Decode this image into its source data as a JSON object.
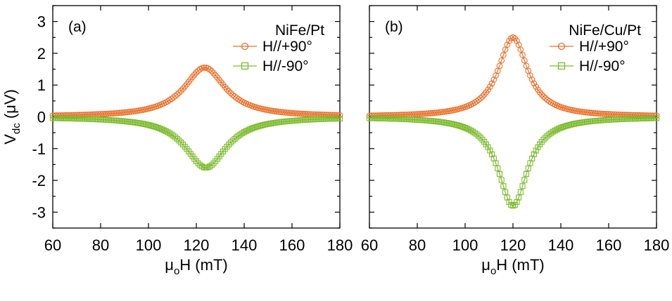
{
  "chart_data": [
    {
      "type": "scatter",
      "panel_label": "(a)",
      "legend_title": "NiFe/Pt",
      "xlabel": "μ0H (mT)",
      "xlabel_main": "μ",
      "xlabel_sub": "o",
      "xlabel_rest": "H (mT)",
      "ylabel": "Vdc (μV)",
      "ylabel_main": "V",
      "ylabel_sub": "dc",
      "ylabel_rest": " (μV)",
      "xlim": [
        60,
        180
      ],
      "ylim": [
        -3.5,
        3.5
      ],
      "xticks": [
        60,
        80,
        100,
        120,
        140,
        160,
        180
      ],
      "yticks": [
        3,
        2,
        1,
        0,
        -1,
        -2,
        -3
      ],
      "series": [
        {
          "name": "H//+90°",
          "marker": "circle",
          "color": "#e8702a",
          "model": {
            "center": 123.5,
            "width": 10.5,
            "amplitude": 1.55,
            "offset": 0.0
          },
          "x": [
            60,
            70,
            80,
            90,
            100,
            110,
            115,
            120,
            123.5,
            127,
            130,
            135,
            140,
            150,
            160,
            170,
            180
          ],
          "y": [
            0.1,
            0.15,
            0.2,
            0.3,
            0.45,
            0.8,
            1.1,
            1.45,
            1.55,
            1.4,
            1.2,
            0.8,
            0.45,
            0.2,
            0.1,
            0.05,
            0.03
          ]
        },
        {
          "name": "H//-90°",
          "marker": "square",
          "color": "#7cbb2e",
          "model": {
            "center": 124.0,
            "width": 10.5,
            "amplitude": -1.6,
            "offset": 0.0
          },
          "x": [
            60,
            70,
            80,
            90,
            100,
            110,
            115,
            120,
            124,
            127,
            130,
            135,
            140,
            150,
            160,
            170,
            180
          ],
          "y": [
            -0.1,
            -0.15,
            -0.2,
            -0.3,
            -0.45,
            -0.8,
            -1.1,
            -1.5,
            -1.6,
            -1.5,
            -1.25,
            -0.85,
            -0.5,
            -0.25,
            -0.12,
            -0.07,
            -0.05
          ]
        }
      ]
    },
    {
      "type": "scatter",
      "panel_label": "(b)",
      "legend_title": "NiFe/Cu/Pt",
      "xlabel": "μ0H (mT)",
      "xlabel_main": "μ",
      "xlabel_sub": "o",
      "xlabel_rest": "H (mT)",
      "xlim": [
        60,
        180
      ],
      "ylim": [
        -3.5,
        3.5
      ],
      "xticks": [
        60,
        80,
        100,
        120,
        140,
        160,
        180
      ],
      "series": [
        {
          "name": "H//+90°",
          "marker": "circle",
          "color": "#e8702a",
          "model": {
            "center": 120.0,
            "width": 7.5,
            "amplitude": 2.5,
            "offset": 0.0
          },
          "x": [
            60,
            70,
            80,
            90,
            100,
            110,
            115,
            120,
            125,
            130,
            140,
            150,
            160,
            170,
            180
          ],
          "y": [
            0.1,
            0.12,
            0.18,
            0.28,
            0.5,
            1.1,
            1.8,
            2.5,
            1.85,
            1.0,
            0.35,
            0.15,
            0.08,
            0.05,
            0.03
          ]
        },
        {
          "name": "H//-90°",
          "marker": "square",
          "color": "#7cbb2e",
          "model": {
            "center": 120.0,
            "width": 7.5,
            "amplitude": -2.8,
            "offset": 0.0
          },
          "x": [
            60,
            70,
            80,
            90,
            100,
            110,
            115,
            120,
            125,
            130,
            140,
            150,
            160,
            170,
            180
          ],
          "y": [
            -0.08,
            -0.12,
            -0.18,
            -0.3,
            -0.55,
            -1.2,
            -2.0,
            -2.8,
            -2.0,
            -1.15,
            -0.4,
            -0.18,
            -0.1,
            -0.06,
            -0.05
          ]
        }
      ]
    }
  ]
}
